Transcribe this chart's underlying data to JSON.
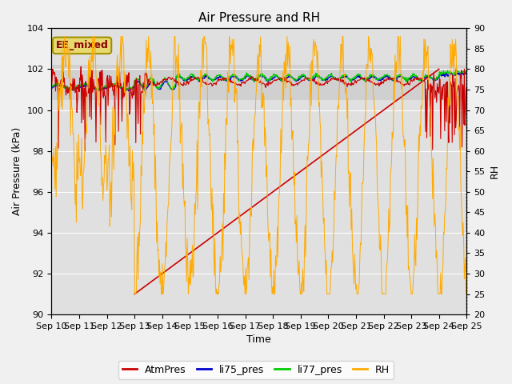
{
  "title": "Air Pressure and RH",
  "xlabel": "Time",
  "ylabel_left": "Air Pressure (kPa)",
  "ylabel_right": "RH",
  "xlim": [
    0,
    15
  ],
  "ylim_left": [
    90,
    104
  ],
  "ylim_right": [
    20,
    90
  ],
  "yticks_left": [
    90,
    92,
    94,
    96,
    98,
    100,
    102,
    104
  ],
  "yticks_right": [
    20,
    25,
    30,
    35,
    40,
    45,
    50,
    55,
    60,
    65,
    70,
    75,
    80,
    85,
    90
  ],
  "xtick_positions": [
    0,
    1,
    2,
    3,
    4,
    5,
    6,
    7,
    8,
    9,
    10,
    11,
    12,
    13,
    14,
    15
  ],
  "xtick_labels": [
    "Sep 10",
    "Sep 11",
    "Sep 12",
    "Sep 13",
    "Sep 14",
    "Sep 15",
    "Sep 16",
    "Sep 17",
    "Sep 18",
    "Sep 19",
    "Sep 20",
    "Sep 21",
    "Sep 22",
    "Sep 23",
    "Sep 24",
    "Sep 25"
  ],
  "annotation_label": "EE_mixed",
  "annotation_facecolor": "#e8d870",
  "annotation_edgecolor": "#a09000",
  "annotation_text_color": "#880000",
  "fig_facecolor": "#f0f0f0",
  "plot_bg_color": "#e0e0e0",
  "band_color": "#d0d0d0",
  "band_ymin": 100.5,
  "band_ymax": 102.2,
  "grid_color": "#ffffff",
  "diag_line": {
    "x0": 3,
    "y0": 91.0,
    "x1": 14,
    "y1": 102.0
  },
  "colors": {
    "AtmPres": "#cc0000",
    "li75_pres": "#0000cc",
    "li77_pres": "#00cc00",
    "RH": "#ffaa00"
  },
  "seed": 12345
}
